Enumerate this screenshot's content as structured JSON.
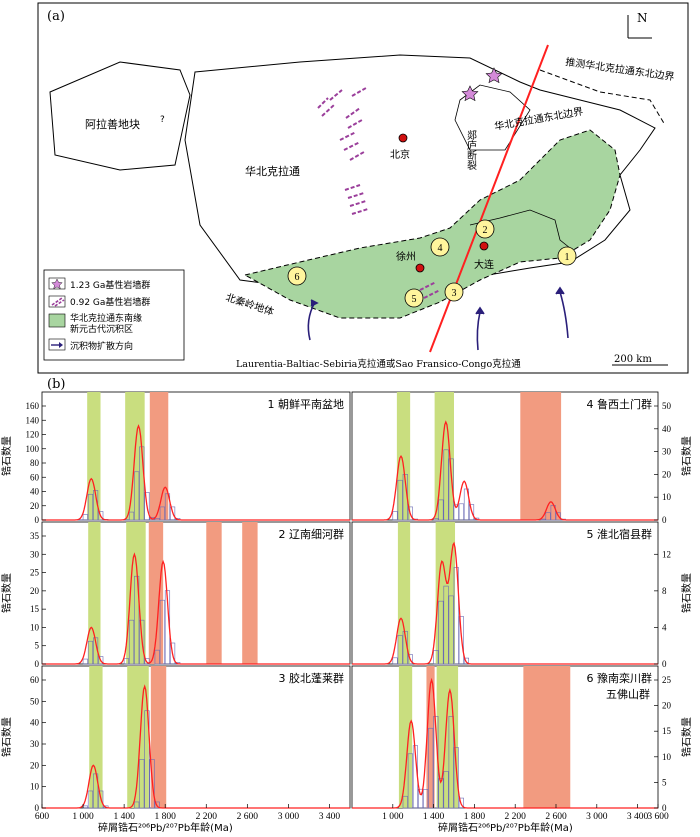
{
  "panel_a": {
    "label": "(a)",
    "north": "N",
    "alxa_block": "阿拉善地块",
    "qmark": "?",
    "ncc": "华北克拉通",
    "beijing": "北京",
    "xuzhou": "徐州",
    "dalian": "大连",
    "tanlu_fault": "郯庐断裂",
    "ncc_ne_boundary": "华北克拉通东北边界",
    "inferred_ne_boundary": "推测华北克拉通东北边界",
    "qinling": "北秦岭地体",
    "bottom_caption": "Laurentia-Baltiac-Sebiria克拉通或Sao Fransico-Congo克拉通",
    "scale": "200 km",
    "legend": [
      {
        "label": "1.23 Ga基性岩墙群",
        "icon": "star-icon"
      },
      {
        "label": "0.92 Ga基性岩墙群",
        "icon": "dyke-icon"
      },
      {
        "label": "华北克拉通东南缘",
        "label2": "新元古代沉积区",
        "icon": "area-icon"
      },
      {
        "label": "沉积物扩散方向",
        "icon": "arrow-icon"
      }
    ],
    "sites": [
      "1",
      "2",
      "3",
      "4",
      "5",
      "6"
    ]
  },
  "panel_b_label": "(b)",
  "colors": {
    "green": "#c9de7f",
    "salmon": "#f29b80",
    "area": "#a8d5a0",
    "red": "#ff2020",
    "bars": "#6a6ab5"
  },
  "chart_data": [
    {
      "type": "bar",
      "title": "1 朝鲜平南盆地",
      "ylabel": "锆石数量",
      "ylim": [
        0,
        160
      ],
      "yticks": [
        "0",
        "20",
        "40",
        "60",
        "80",
        "100",
        "120",
        "140",
        "160"
      ],
      "peaks_ma": [
        1080,
        1540,
        1800
      ],
      "peak_counts": [
        58,
        132,
        46
      ]
    },
    {
      "type": "bar",
      "title": "4 鲁西土门群",
      "ylabel": "锆石数量",
      "ylim": [
        0,
        50
      ],
      "yticks": [
        "0",
        "10",
        "20",
        "30",
        "40",
        "50"
      ],
      "peaks_ma": [
        1080,
        1520,
        1700,
        2550
      ],
      "peak_counts": [
        28,
        43,
        17,
        8
      ]
    },
    {
      "type": "bar",
      "title": "2 辽南细河群",
      "ylabel": "锆石数量",
      "ylim": [
        0,
        35
      ],
      "yticks": [
        "0",
        "5",
        "10",
        "15",
        "20",
        "25",
        "30",
        "35"
      ],
      "peaks_ma": [
        1080,
        1500,
        1780
      ],
      "peak_counts": [
        10,
        30,
        28
      ]
    },
    {
      "type": "bar",
      "title": "5 淮北宿县群",
      "ylabel": "锆石数量",
      "ylim": [
        0,
        14
      ],
      "yticks": [
        "0",
        "4",
        "8",
        "12"
      ],
      "peaks_ma": [
        1080,
        1480,
        1600
      ],
      "peak_counts": [
        5,
        11,
        13
      ]
    },
    {
      "type": "bar",
      "title": "3 胶北蓬莱群",
      "ylabel": "锆石数量",
      "ylim": [
        0,
        60
      ],
      "yticks": [
        "0",
        "10",
        "20",
        "30",
        "40",
        "50",
        "60"
      ],
      "peaks_ma": [
        1100,
        1600
      ],
      "peak_counts": [
        20,
        57
      ]
    },
    {
      "type": "bar",
      "title": "6 豫南栾川群",
      "title2": "五佛山群",
      "ylabel": "锆石数量",
      "ylim": [
        0,
        25
      ],
      "yticks": [
        "0",
        "5",
        "10",
        "15",
        "20",
        "25"
      ],
      "peaks_ma": [
        1180,
        1380,
        1560
      ],
      "peak_counts": [
        17,
        25,
        23
      ]
    }
  ],
  "x_axis": {
    "left_ticks": [
      "600",
      "1 000",
      "1 400",
      "1 800",
      "2 200",
      "2 600",
      "3 000",
      "3 400"
    ],
    "right_ticks": [
      "1 000",
      "1 400",
      "1 800",
      "2 200",
      "2 600",
      "3 000",
      "3 400",
      "3 600"
    ],
    "label": "碎屑锆石²⁰⁶Pb/²⁰⁷Pb年龄(Ma)"
  }
}
